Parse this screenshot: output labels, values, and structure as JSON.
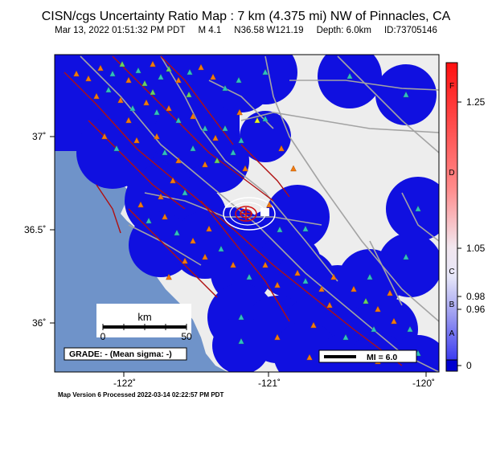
{
  "header": {
    "title": "CISN/cgs Uncertainty Ratio Map : 7 km (4.375 mi) NW of Pinnacles, CA",
    "datetime": "Mar 13, 2022 01:51:32 PM PDT",
    "magnitude": "M 4.1",
    "coords": "N36.58 W121.19",
    "depth": "Depth: 6.0km",
    "event_id": "ID:73705146"
  },
  "axes": {
    "lat_labels": [
      "37˚",
      "36.5˚",
      "36˚"
    ],
    "lon_labels": [
      "-122˚",
      "-121˚",
      "-120˚"
    ]
  },
  "scalebar": {
    "unit": "km",
    "tick_0": "0",
    "tick_50": "50"
  },
  "grade_text": "GRADE: - (Mean sigma: -)",
  "mi_legend": "MI = 6.0",
  "colorbar": {
    "values": [
      "1.25",
      "1.05",
      "0.98",
      "0.96",
      "0"
    ],
    "grades": [
      "F",
      "D",
      "C",
      "B",
      "A"
    ]
  },
  "footer": "Map Version 6 Processed 2022-03-14 02:22:57 PM PDT",
  "colors": {
    "ocean": "#6f93c9",
    "land": "#ededed",
    "stations_area": "#1010e0",
    "faults": "#b01010",
    "roads": "#a3a3a3"
  }
}
